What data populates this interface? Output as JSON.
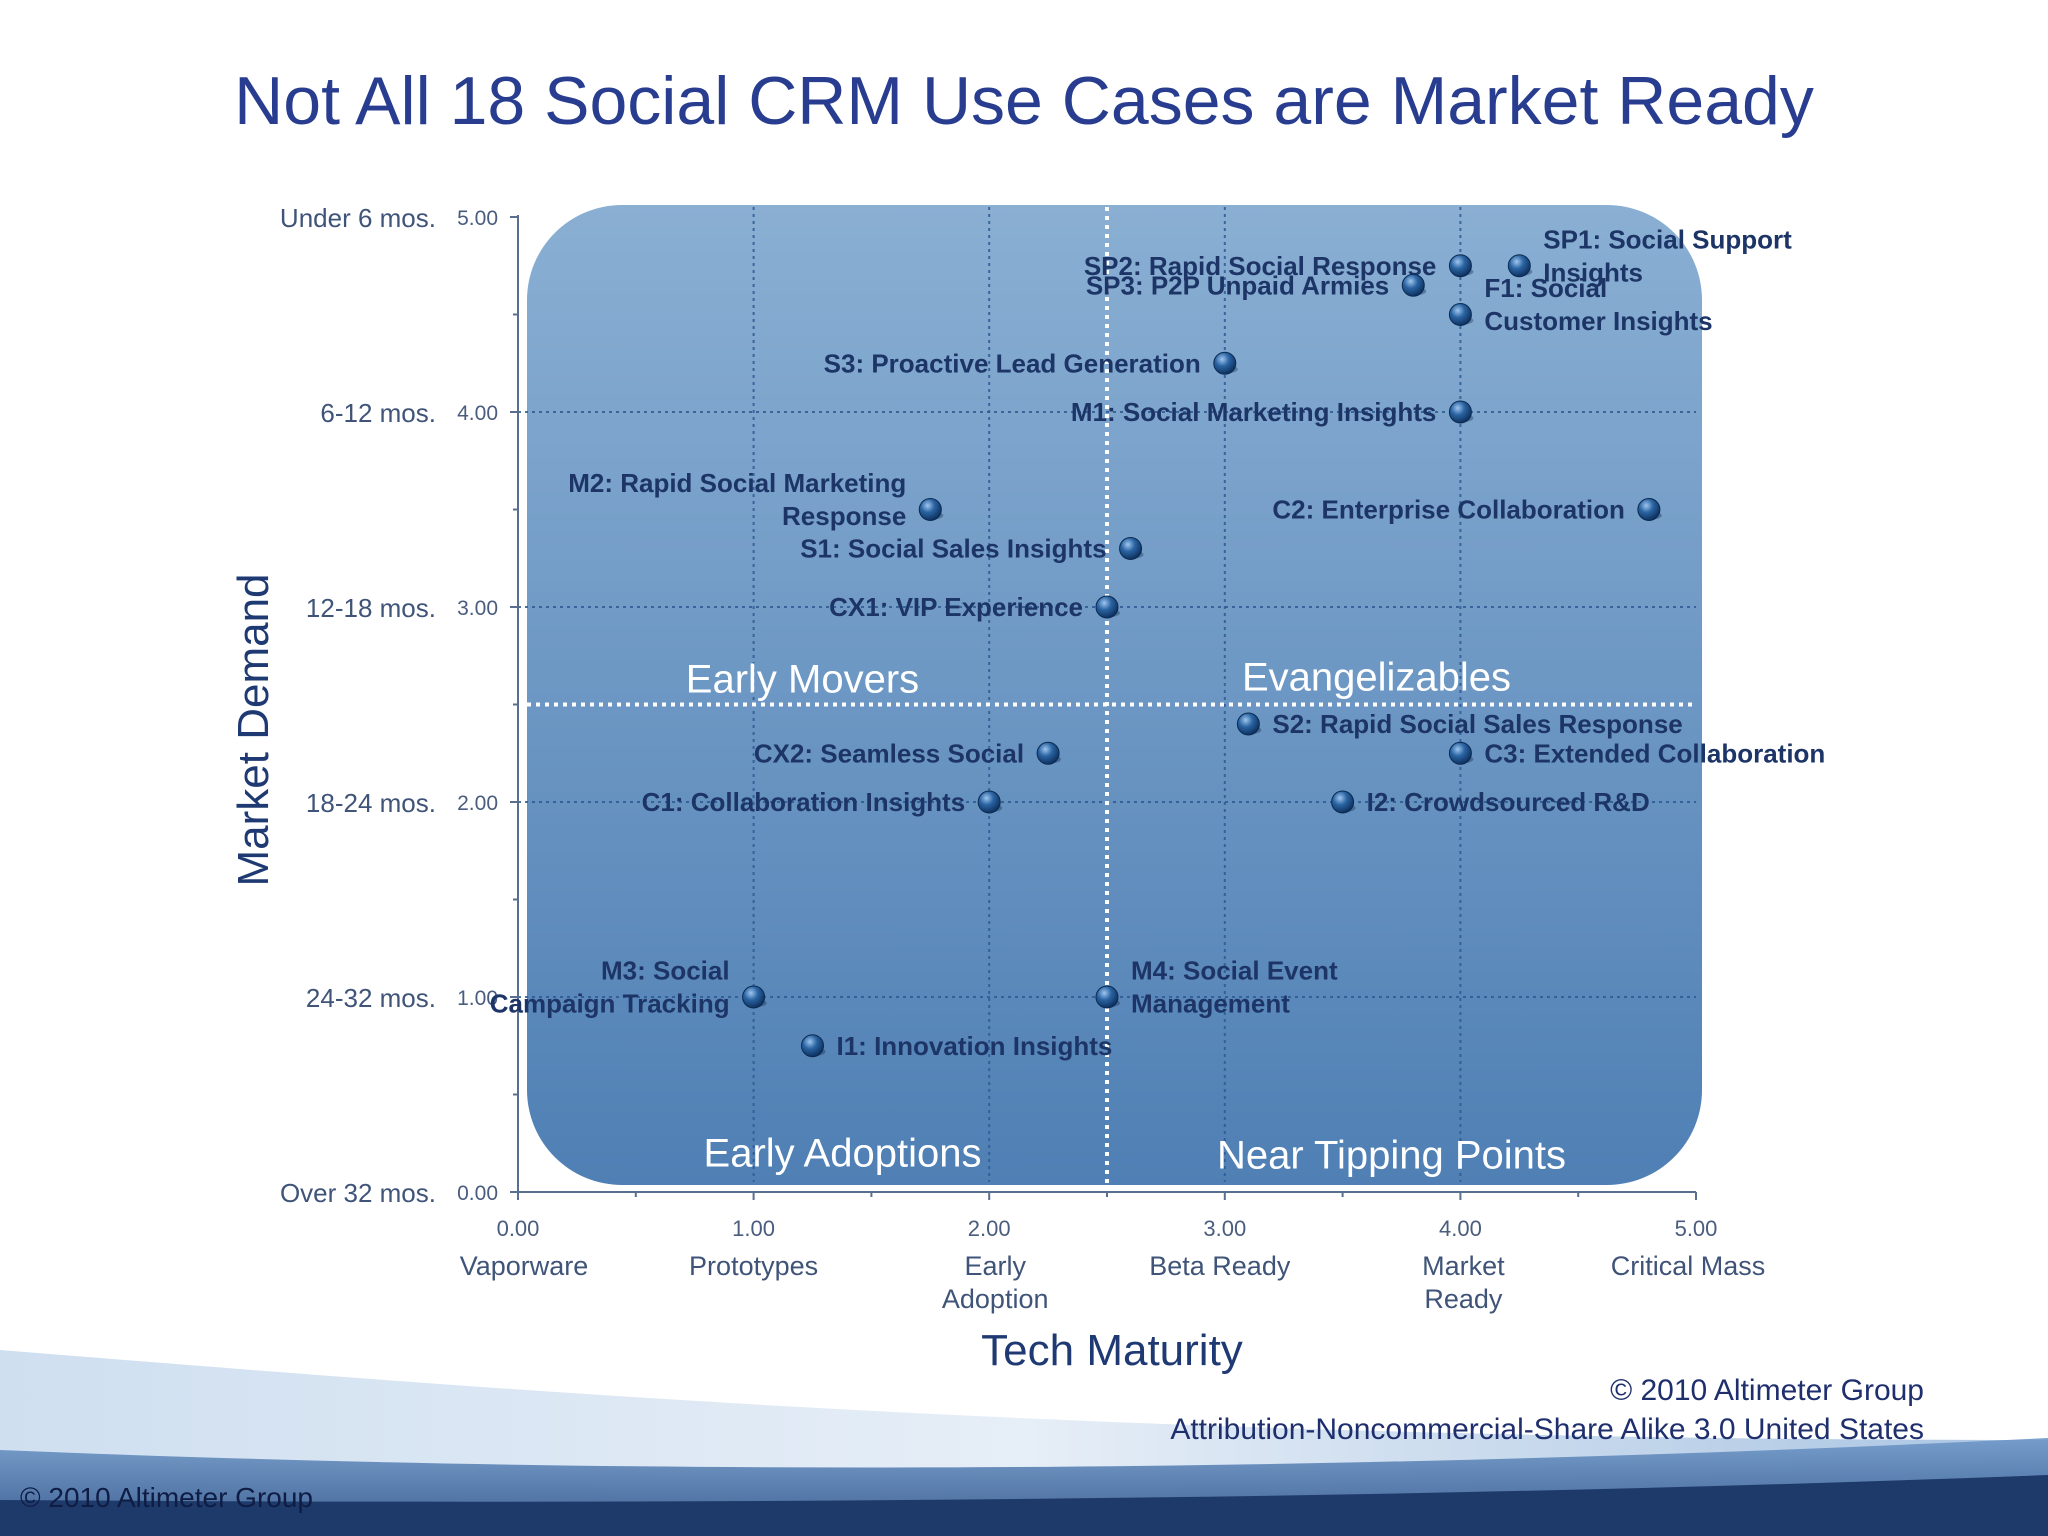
{
  "slide": {
    "title": "Not All 18 Social CRM Use Cases are Market Ready",
    "credit_line1": "© 2010 Altimeter Group",
    "credit_line2": "Attribution-Noncommercial-Share Alike 3.0 United States",
    "footer_credit": "© 2010 Altimeter Group"
  },
  "colors": {
    "title": "#283d8f",
    "panel_top": "#8aafd3",
    "panel_bottom": "#4f7fb4",
    "point": "#1b4f86",
    "point_label": "#1d3566",
    "quadrant_label": "#ffffff"
  },
  "chart_data": {
    "type": "scatter",
    "title": "",
    "xlabel": "Tech Maturity",
    "ylabel": "Market Demand",
    "xlim": [
      0,
      5
    ],
    "ylim": [
      0,
      5
    ],
    "grid": true,
    "x_ticks": [
      {
        "value": 0,
        "number": "0.00",
        "label": [
          "Vaporware"
        ]
      },
      {
        "value": 1,
        "number": "1.00",
        "label": [
          "Prototypes"
        ]
      },
      {
        "value": 2,
        "number": "2.00",
        "label": [
          "Early",
          "Adoption"
        ]
      },
      {
        "value": 3,
        "number": "3.00",
        "label": [
          "Beta Ready"
        ]
      },
      {
        "value": 4,
        "number": "4.00",
        "label": [
          "Market",
          "Ready"
        ]
      },
      {
        "value": 5,
        "number": "5.00",
        "label": [
          "Critical Mass"
        ]
      }
    ],
    "y_ticks": [
      {
        "value": 0,
        "number": "0.00",
        "label": "Over 32 mos."
      },
      {
        "value": 1,
        "number": "1.00",
        "label": "24-32 mos."
      },
      {
        "value": 2,
        "number": "2.00",
        "label": "18-24 mos."
      },
      {
        "value": 3,
        "number": "3.00",
        "label": "12-18 mos."
      },
      {
        "value": 4,
        "number": "4.00",
        "label": "6-12 mos."
      },
      {
        "value": 5,
        "number": "5.00",
        "label": "Under 6 mos."
      }
    ],
    "quadrant_divider": {
      "x": 2.5,
      "y": 2.5
    },
    "quadrants": [
      {
        "name": "Early Movers",
        "position": "top-left"
      },
      {
        "name": "Evangelizables",
        "position": "top-right"
      },
      {
        "name": "Early Adoptions",
        "position": "bottom-left"
      },
      {
        "name": "Near Tipping Points",
        "position": "bottom-right"
      }
    ],
    "points": [
      {
        "label": [
          "SP1: Social Support",
          "Insights"
        ],
        "x": 4.25,
        "y": 4.75,
        "label_side": "right"
      },
      {
        "label": [
          "SP2: Rapid Social Response"
        ],
        "x": 4.0,
        "y": 4.75,
        "label_side": "left"
      },
      {
        "label": [
          "SP3: P2P Unpaid Armies"
        ],
        "x": 3.8,
        "y": 4.65,
        "label_side": "left"
      },
      {
        "label": [
          "F1: Social",
          "Customer Insights"
        ],
        "x": 4.0,
        "y": 4.5,
        "label_side": "right"
      },
      {
        "label": [
          "S3: Proactive Lead Generation"
        ],
        "x": 3.0,
        "y": 4.25,
        "label_side": "left"
      },
      {
        "label": [
          "M1: Social Marketing Insights"
        ],
        "x": 4.0,
        "y": 4.0,
        "label_side": "left"
      },
      {
        "label": [
          "M2: Rapid Social Marketing",
          "Response"
        ],
        "x": 1.75,
        "y": 3.5,
        "label_side": "left"
      },
      {
        "label": [
          "C2: Enterprise Collaboration"
        ],
        "x": 4.8,
        "y": 3.5,
        "label_side": "left"
      },
      {
        "label": [
          "S1: Social Sales Insights"
        ],
        "x": 2.6,
        "y": 3.3,
        "label_side": "left"
      },
      {
        "label": [
          "CX1: VIP Experience"
        ],
        "x": 2.5,
        "y": 3.0,
        "label_side": "left"
      },
      {
        "label": [
          "S2: Rapid Social Sales Response"
        ],
        "x": 3.1,
        "y": 2.4,
        "label_side": "right"
      },
      {
        "label": [
          "CX2: Seamless Social"
        ],
        "x": 2.25,
        "y": 2.25,
        "label_side": "left"
      },
      {
        "label": [
          "C3: Extended Collaboration"
        ],
        "x": 4.0,
        "y": 2.25,
        "label_side": "right"
      },
      {
        "label": [
          "C1: Collaboration Insights"
        ],
        "x": 2.0,
        "y": 2.0,
        "label_side": "left"
      },
      {
        "label": [
          "I2: Crowdsourced R&D"
        ],
        "x": 3.5,
        "y": 2.0,
        "label_side": "right"
      },
      {
        "label": [
          "M3: Social",
          "Campaign Tracking"
        ],
        "x": 1.0,
        "y": 1.0,
        "label_side": "left"
      },
      {
        "label": [
          "M4: Social Event",
          "Management"
        ],
        "x": 2.5,
        "y": 1.0,
        "label_side": "right"
      },
      {
        "label": [
          "I1: Innovation Insights"
        ],
        "x": 1.25,
        "y": 0.75,
        "label_side": "right"
      }
    ]
  }
}
